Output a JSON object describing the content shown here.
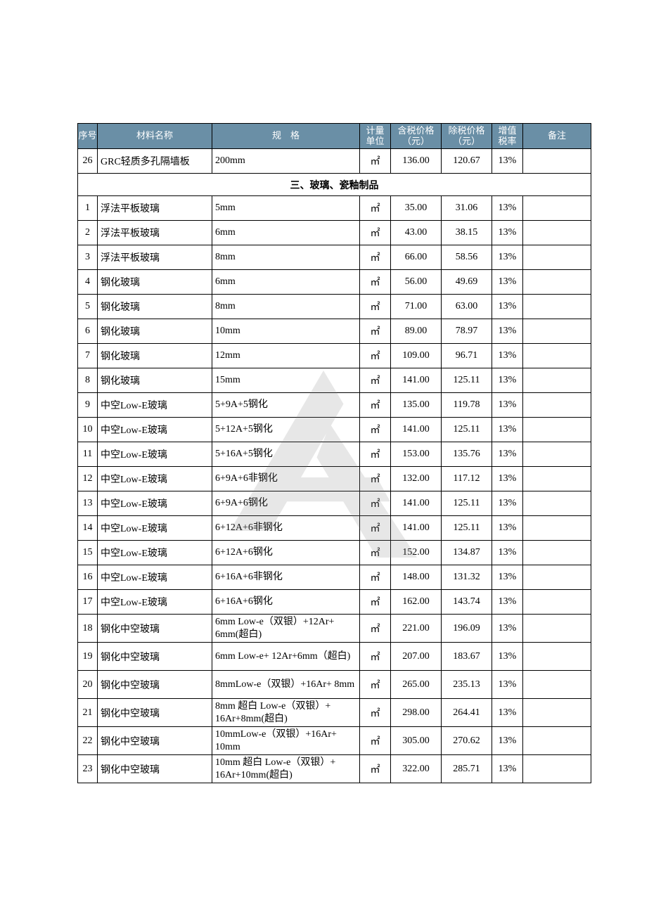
{
  "header": {
    "idx": "序号",
    "name": "材料名称",
    "spec": "规　格",
    "unit": "计量\n单位",
    "p1": "含税价格\n（元）",
    "p2": "除税价格\n（元）",
    "rate": "增值\n税率",
    "note": "备注"
  },
  "top_rows": [
    {
      "idx": "26",
      "name": "GRC轻质多孔隔墙板",
      "spec": "200mm",
      "unit": "㎡",
      "p1": "136.00",
      "p2": "120.67",
      "rate": "13%",
      "note": ""
    }
  ],
  "section_title": "三、玻璃、瓷釉制品",
  "rows": [
    {
      "idx": "1",
      "name": "浮法平板玻璃",
      "spec": "5mm",
      "unit": "㎡",
      "p1": "35.00",
      "p2": "31.06",
      "rate": "13%",
      "note": ""
    },
    {
      "idx": "2",
      "name": "浮法平板玻璃",
      "spec": "6mm",
      "unit": "㎡",
      "p1": "43.00",
      "p2": "38.15",
      "rate": "13%",
      "note": ""
    },
    {
      "idx": "3",
      "name": "浮法平板玻璃",
      "spec": "8mm",
      "unit": "㎡",
      "p1": "66.00",
      "p2": "58.56",
      "rate": "13%",
      "note": ""
    },
    {
      "idx": "4",
      "name": "钢化玻璃",
      "spec": "6mm",
      "unit": "㎡",
      "p1": "56.00",
      "p2": "49.69",
      "rate": "13%",
      "note": ""
    },
    {
      "idx": "5",
      "name": "钢化玻璃",
      "spec": "8mm",
      "unit": "㎡",
      "p1": "71.00",
      "p2": "63.00",
      "rate": "13%",
      "note": ""
    },
    {
      "idx": "6",
      "name": "钢化玻璃",
      "spec": "10mm",
      "unit": "㎡",
      "p1": "89.00",
      "p2": "78.97",
      "rate": "13%",
      "note": ""
    },
    {
      "idx": "7",
      "name": "钢化玻璃",
      "spec": "12mm",
      "unit": "㎡",
      "p1": "109.00",
      "p2": "96.71",
      "rate": "13%",
      "note": ""
    },
    {
      "idx": "8",
      "name": "钢化玻璃",
      "spec": "15mm",
      "unit": "㎡",
      "p1": "141.00",
      "p2": "125.11",
      "rate": "13%",
      "note": ""
    },
    {
      "idx": "9",
      "name": "中空Low-E玻璃",
      "spec": "5+9A+5钢化",
      "unit": "㎡",
      "p1": "135.00",
      "p2": "119.78",
      "rate": "13%",
      "note": ""
    },
    {
      "idx": "10",
      "name": "中空Low-E玻璃",
      "spec": "5+12A+5钢化",
      "unit": "㎡",
      "p1": "141.00",
      "p2": "125.11",
      "rate": "13%",
      "note": ""
    },
    {
      "idx": "11",
      "name": "中空Low-E玻璃",
      "spec": "5+16A+5钢化",
      "unit": "㎡",
      "p1": "153.00",
      "p2": "135.76",
      "rate": "13%",
      "note": ""
    },
    {
      "idx": "12",
      "name": "中空Low-E玻璃",
      "spec": "6+9A+6非钢化",
      "unit": "㎡",
      "p1": "132.00",
      "p2": "117.12",
      "rate": "13%",
      "note": ""
    },
    {
      "idx": "13",
      "name": "中空Low-E玻璃",
      "spec": "6+9A+6钢化",
      "unit": "㎡",
      "p1": "141.00",
      "p2": "125.11",
      "rate": "13%",
      "note": ""
    },
    {
      "idx": "14",
      "name": "中空Low-E玻璃",
      "spec": "6+12A+6非钢化",
      "unit": "㎡",
      "p1": "141.00",
      "p2": "125.11",
      "rate": "13%",
      "note": ""
    },
    {
      "idx": "15",
      "name": "中空Low-E玻璃",
      "spec": "6+12A+6钢化",
      "unit": "㎡",
      "p1": "152.00",
      "p2": "134.87",
      "rate": "13%",
      "note": ""
    },
    {
      "idx": "16",
      "name": "中空Low-E玻璃",
      "spec": "6+16A+6非钢化",
      "unit": "㎡",
      "p1": "148.00",
      "p2": "131.32",
      "rate": "13%",
      "note": ""
    },
    {
      "idx": "17",
      "name": "中空Low-E玻璃",
      "spec": "6+16A+6钢化",
      "unit": "㎡",
      "p1": "162.00",
      "p2": "143.74",
      "rate": "13%",
      "note": ""
    },
    {
      "idx": "18",
      "name": "钢化中空玻璃",
      "spec": "6mm Low-e（双银）+12Ar+ 6mm(超白)",
      "unit": "㎡",
      "p1": "221.00",
      "p2": "196.09",
      "rate": "13%",
      "note": "",
      "tall": true
    },
    {
      "idx": "19",
      "name": "钢化中空玻璃",
      "spec": "6mm Low-e+ 12Ar+6mm（超白)",
      "unit": "㎡",
      "p1": "207.00",
      "p2": "183.67",
      "rate": "13%",
      "note": "",
      "tall": true
    },
    {
      "idx": "20",
      "name": "钢化中空玻璃",
      "spec": "8mmLow-e（双银）+16Ar+ 8mm",
      "unit": "㎡",
      "p1": "265.00",
      "p2": "235.13",
      "rate": "13%",
      "note": "",
      "tall": true
    },
    {
      "idx": "21",
      "name": "钢化中空玻璃",
      "spec": "8mm 超白 Low-e（双银）+ 16Ar+8mm(超白)",
      "unit": "㎡",
      "p1": "298.00",
      "p2": "264.41",
      "rate": "13%",
      "note": "",
      "tall": true
    },
    {
      "idx": "22",
      "name": "钢化中空玻璃",
      "spec": "10mmLow-e（双银）+16Ar+ 10mm",
      "unit": "㎡",
      "p1": "305.00",
      "p2": "270.62",
      "rate": "13%",
      "note": "",
      "tall": true
    },
    {
      "idx": "23",
      "name": "钢化中空玻璃",
      "spec": "10mm 超白 Low-e（双银）+ 16Ar+10mm(超白)",
      "unit": "㎡",
      "p1": "322.00",
      "p2": "285.71",
      "rate": "13%",
      "note": "",
      "tall": true
    }
  ],
  "style": {
    "header_bg": "#6a8fa6",
    "header_fg": "#ffffff",
    "border_color": "#000000",
    "watermark_color": "#808080"
  }
}
